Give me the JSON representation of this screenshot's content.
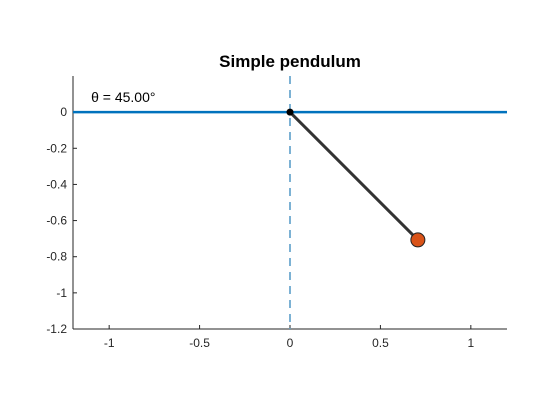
{
  "chart_data": {
    "type": "line",
    "title": "Simple pendulum",
    "xlabel": "",
    "ylabel": "",
    "xlim": [
      -1.2,
      1.2
    ],
    "ylim": [
      -1.2,
      0.2
    ],
    "x_ticks": [
      -1,
      -0.5,
      0,
      0.5,
      1
    ],
    "x_tick_labels": [
      "-1",
      "-0.5",
      "0",
      "0.5",
      "1"
    ],
    "y_ticks": [
      0,
      -0.2,
      -0.4,
      -0.6,
      -0.8,
      -1,
      -1.2
    ],
    "y_tick_labels": [
      "0",
      "-0.2",
      "-0.4",
      "-0.6",
      "-0.8",
      "-1",
      "-1.2"
    ],
    "grid": false,
    "annotation": "θ = 45.00°",
    "annotation_pos": {
      "x": -1.1,
      "y": 0.085
    },
    "ceiling_line": {
      "y": 0,
      "color": "#0072BD"
    },
    "reference_line": {
      "x": 0,
      "style": "dashed",
      "color": "#5b9ec9"
    },
    "pivot": {
      "x": 0,
      "y": 0,
      "color": "#000000"
    },
    "rod": {
      "x": [
        0,
        0.7071
      ],
      "y": [
        0,
        -0.7071
      ],
      "color": "#333333"
    },
    "bob": {
      "x": 0.7071,
      "y": -0.7071,
      "color": "#D95319"
    }
  }
}
